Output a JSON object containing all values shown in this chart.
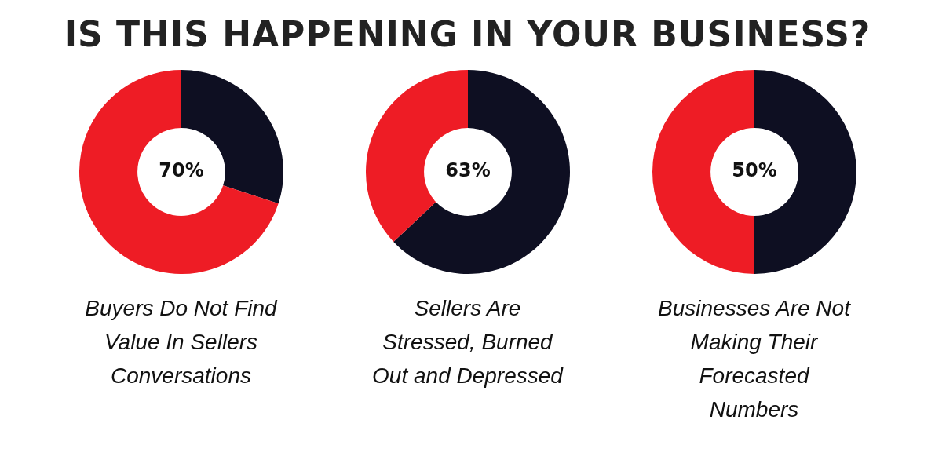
{
  "chart_data": [
    {
      "type": "other",
      "title": "IS THIS HAPPENING IN YOUR BUSINESS?"
    },
    {
      "type": "donut",
      "categories": [
        null,
        null
      ],
      "values": [
        30,
        70
      ],
      "colors": [
        "#0e0f22",
        "#ee1c25"
      ],
      "annotations": [
        "70%",
        "Buyers Do Not Find Value In Sellers Conversations"
      ]
    },
    {
      "type": "donut",
      "categories": [
        null,
        null
      ],
      "values": [
        63,
        37
      ],
      "colors": [
        "#0e0f22",
        "#ee1c25"
      ],
      "annotations": [
        "63%",
        "Sellers Are Stressed, Burned Out and Depressed"
      ]
    },
    {
      "type": "donut",
      "categories": [
        null,
        null
      ],
      "values": [
        50,
        50
      ],
      "colors": [
        "#0e0f22",
        "#ee1c25"
      ],
      "annotations": [
        "50%",
        "Businesses Are Not Making Their Forecasted Numbers"
      ]
    }
  ]
}
